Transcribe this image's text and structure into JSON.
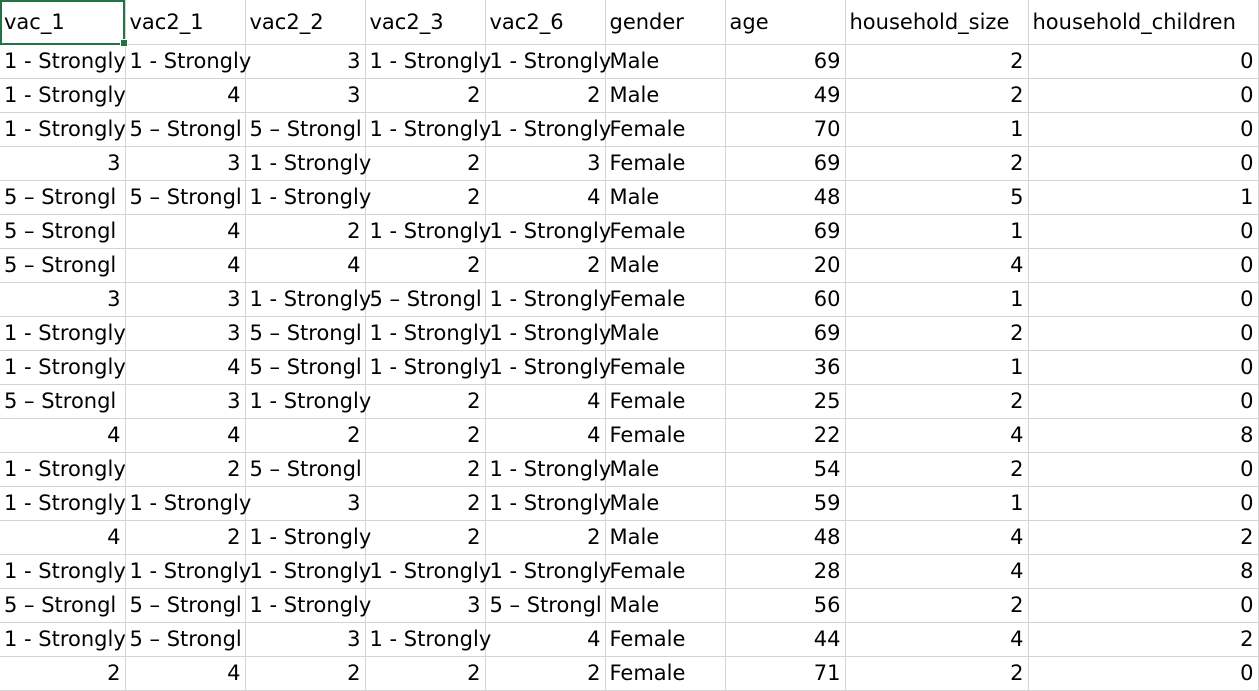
{
  "sheet": {
    "headers": [
      "vac_1",
      "vac2_1",
      "vac2_2",
      "vac2_3",
      "vac2_6",
      "gender",
      "age",
      "household_size",
      "household_children"
    ],
    "rows": [
      [
        "1 - Strongly",
        "1 - Strongly",
        "3",
        "1 - Strongly",
        "1 - Strongly",
        "Male",
        "69",
        "2",
        "0"
      ],
      [
        "1 - Strongly",
        "4",
        "3",
        "2",
        "2",
        "Male",
        "49",
        "2",
        "0"
      ],
      [
        "1 - Strongly",
        "5 – Strongl",
        "5 – Strongl",
        "1 - Strongly",
        "1 - Strongly",
        "Female",
        "70",
        "1",
        "0"
      ],
      [
        "3",
        "3",
        "1 - Strongly",
        "2",
        "3",
        "Female",
        "69",
        "2",
        "0"
      ],
      [
        "5 – Strongl",
        "5 – Strongl",
        "1 - Strongly",
        "2",
        "4",
        "Male",
        "48",
        "5",
        "1"
      ],
      [
        "5 – Strongl",
        "4",
        "2",
        "1 - Strongly",
        "1 - Strongly",
        "Female",
        "69",
        "1",
        "0"
      ],
      [
        "5 – Strongl",
        "4",
        "4",
        "2",
        "2",
        "Male",
        "20",
        "4",
        "0"
      ],
      [
        "3",
        "3",
        "1 - Strongly",
        "5 – Strongl",
        "1 - Strongly",
        "Female",
        "60",
        "1",
        "0"
      ],
      [
        "1 - Strongly",
        "3",
        "5 – Strongl",
        "1 - Strongly",
        "1 - Strongly",
        "Male",
        "69",
        "2",
        "0"
      ],
      [
        "1 - Strongly",
        "4",
        "5 – Strongl",
        "1 - Strongly",
        "1 - Strongly",
        "Female",
        "36",
        "1",
        "0"
      ],
      [
        "5 – Strongl",
        "3",
        "1 - Strongly",
        "2",
        "4",
        "Female",
        "25",
        "2",
        "0"
      ],
      [
        "4",
        "4",
        "2",
        "2",
        "4",
        "Female",
        "22",
        "4",
        "8"
      ],
      [
        "1 - Strongly",
        "2",
        "5 – Strongl",
        "2",
        "1 - Strongly",
        "Male",
        "54",
        "2",
        "0"
      ],
      [
        "1 - Strongly",
        "1 - Strongly",
        "3",
        "2",
        "1 - Strongly",
        "Male",
        "59",
        "1",
        "0"
      ],
      [
        "4",
        "2",
        "1 - Strongly",
        "2",
        "2",
        "Male",
        "48",
        "4",
        "2"
      ],
      [
        "1 - Strongly",
        "1 - Strongly",
        "1 - Strongly",
        "1 - Strongly",
        "1 - Strongly",
        "Female",
        "28",
        "4",
        "8"
      ],
      [
        "5 – Strongl",
        "5 – Strongl",
        "1 - Strongly",
        "3",
        "5 – Strongl",
        "Male",
        "56",
        "2",
        "0"
      ],
      [
        "1 - Strongly",
        "5 – Strongl",
        "3",
        "1 - Strongly",
        "4",
        "Female",
        "44",
        "4",
        "2"
      ],
      [
        "2",
        "4",
        "2",
        "2",
        "2",
        "Female",
        "71",
        "2",
        "0"
      ]
    ]
  },
  "colors": {
    "gridline": "#d4d4d4",
    "selection": "#217346",
    "text": "#000000",
    "background": "#ffffff"
  }
}
